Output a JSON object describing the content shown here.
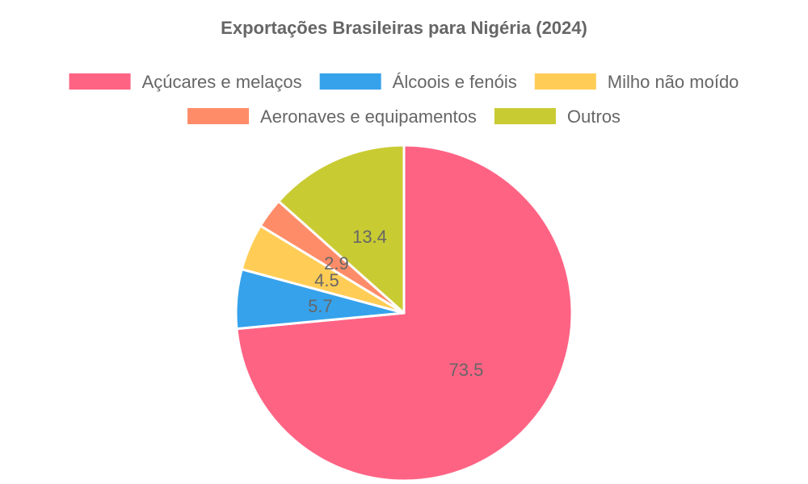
{
  "chart_data": {
    "type": "pie",
    "title": "Exportações Brasileiras para Nigéria (2024)",
    "legend_position": "top",
    "series": [
      {
        "categories": [
          "Açúcares e melaços",
          "Álcoois e fenóis",
          "Milho não moído",
          "Aeronaves e equipamentos",
          "Outros"
        ],
        "values": [
          73.5,
          5.7,
          4.5,
          2.9,
          13.4
        ],
        "labels": [
          "73.5",
          "5.7",
          "4.5",
          "2.9",
          "13.4"
        ],
        "colors": [
          "#ff6384",
          "#36a2eb",
          "#ffcd56",
          "#ff8c69",
          "#c9cb33"
        ]
      }
    ]
  }
}
